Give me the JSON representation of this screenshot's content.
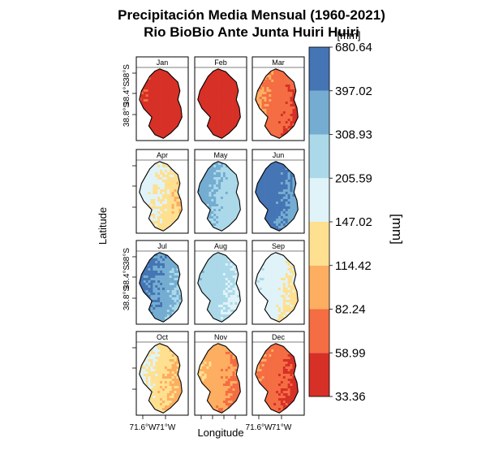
{
  "chart_data": {
    "type": "heatmap",
    "title": "Precipitación Media Mensual (1960-2021)",
    "subtitle": "Rio BioBio Ante Junta Huiri Huiri",
    "xlabel": "Longitude",
    "ylabel": "Latitude",
    "x_ticks": [
      "71.6°W",
      "71°W"
    ],
    "y_ticks": [
      "38°S",
      "38.4°S",
      "38.8°S"
    ],
    "colorbar": {
      "unit_label": "[mm]",
      "unit_top_label": "[mm]",
      "breaks": [
        33.36,
        58.99,
        82.24,
        114.42,
        147.02,
        205.59,
        308.93,
        397.02,
        680.64
      ],
      "colors": [
        "#D73027",
        "#F46D43",
        "#FDAE61",
        "#FEE090",
        "#E0F3F8",
        "#ABD9E9",
        "#74ADD1",
        "#4575B4"
      ]
    },
    "panels": [
      {
        "month": "Jan",
        "mean_mm": 45
      },
      {
        "month": "Feb",
        "mean_mm": 40
      },
      {
        "month": "Mar",
        "mean_mm": 68
      },
      {
        "month": "Apr",
        "mean_mm": 140
      },
      {
        "month": "May",
        "mean_mm": 290
      },
      {
        "month": "Jun",
        "mean_mm": 430
      },
      {
        "month": "Jul",
        "mean_mm": 360
      },
      {
        "month": "Aug",
        "mean_mm": 230
      },
      {
        "month": "Sep",
        "mean_mm": 160
      },
      {
        "month": "Oct",
        "mean_mm": 125
      },
      {
        "month": "Nov",
        "mean_mm": 90
      },
      {
        "month": "Dec",
        "mean_mm": 65
      }
    ]
  }
}
